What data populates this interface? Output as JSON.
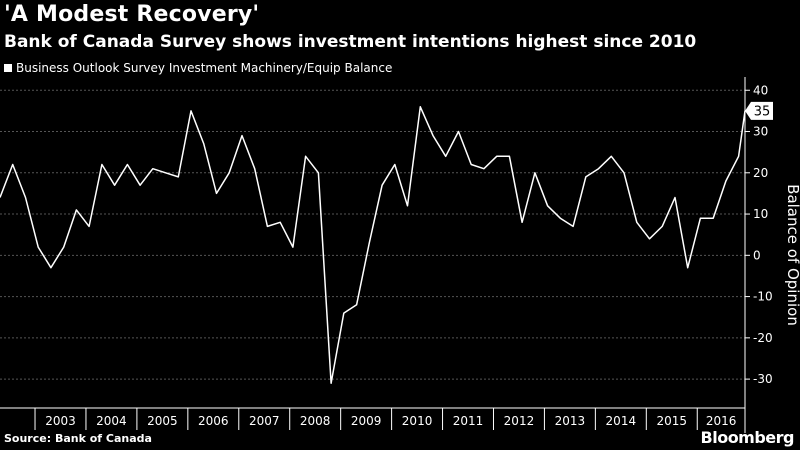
{
  "title": "'A Modest Recovery'",
  "subtitle": "Bank of Canada Survey shows investment intentions highest since 2010",
  "legend_label": "Business Outlook Survey Investment Machinery/Equip Balance",
  "source": "Source: Bank of Canada",
  "brand": "Bloomberg",
  "colors": {
    "background": "#000000",
    "line": "#ffffff",
    "grid": "#555555"
  },
  "chart_data": {
    "type": "line",
    "title": "'A Modest Recovery'",
    "ylabel": "Balance of Opinion",
    "xlabel": "",
    "ylim": [
      -37,
      42
    ],
    "yticks": [
      40,
      30,
      20,
      10,
      0,
      -10,
      -20,
      -30
    ],
    "ytick_labels": [
      "40",
      "30",
      "20",
      "10",
      "0",
      "-10",
      "-20",
      "-30"
    ],
    "x_range": [
      2002.3125,
      2016.9375
    ],
    "year_categories": [
      "2003",
      "2004",
      "2005",
      "2006",
      "2007",
      "2008",
      "2009",
      "2010",
      "2011",
      "2012",
      "2013",
      "2014",
      "2015",
      "2016"
    ],
    "last_value_label": "35",
    "series": [
      {
        "name": "Business Outlook Survey Investment Machinery/Equip Balance",
        "x": [
          2002.3125,
          2002.5625,
          2002.8125,
          2003.0625,
          2003.3125,
          2003.5625,
          2003.8125,
          2004.0625,
          2004.3125,
          2004.5625,
          2004.8125,
          2005.0625,
          2005.3125,
          2005.5625,
          2005.8125,
          2006.0625,
          2006.3125,
          2006.5625,
          2006.8125,
          2007.0625,
          2007.3125,
          2007.5625,
          2007.8125,
          2008.0625,
          2008.3125,
          2008.5625,
          2008.8125,
          2009.0625,
          2009.3125,
          2009.5625,
          2009.8125,
          2010.0625,
          2010.3125,
          2010.5625,
          2010.8125,
          2011.0625,
          2011.3125,
          2011.5625,
          2011.8125,
          2012.0625,
          2012.3125,
          2012.5625,
          2012.8125,
          2013.0625,
          2013.3125,
          2013.5625,
          2013.8125,
          2014.0625,
          2014.3125,
          2014.5625,
          2014.8125,
          2015.0625,
          2015.3125,
          2015.5625,
          2015.8125,
          2016.0625,
          2016.3125,
          2016.5625,
          2016.8125
        ],
        "values": [
          14,
          22,
          14,
          2,
          -3,
          2,
          11,
          7,
          22,
          17,
          22,
          17,
          21,
          20,
          19,
          35,
          27,
          15,
          20,
          29,
          21,
          7,
          8,
          2,
          24,
          20,
          -31,
          -14,
          -12,
          3,
          17,
          22,
          12,
          36,
          29,
          24,
          30,
          22,
          21,
          24,
          24,
          8,
          20,
          12,
          9,
          7,
          19,
          21,
          24,
          20,
          8,
          4,
          7,
          14,
          -3,
          9,
          9,
          18,
          24
        ]
      }
    ],
    "extra_point": {
      "x": 2016.9375,
      "value": 35
    }
  }
}
